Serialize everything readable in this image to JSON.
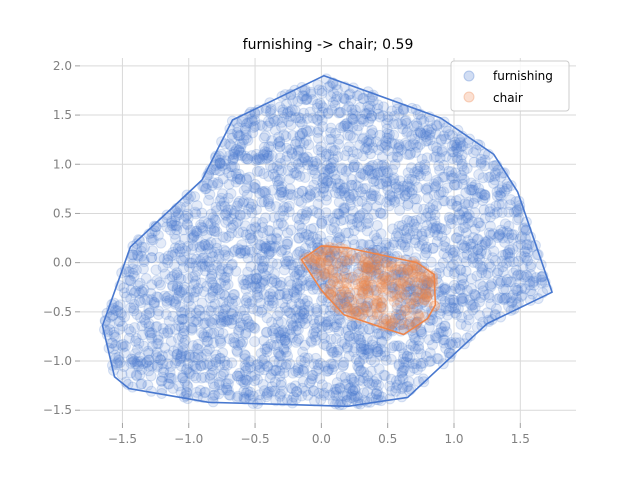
{
  "chart_data": {
    "type": "scatter",
    "title": "furnishing -> chair; 0.59",
    "xlabel": "",
    "ylabel": "",
    "xlim": [
      -1.82,
      1.92
    ],
    "ylim": [
      -1.63,
      2.08
    ],
    "grid": true,
    "legend_position": "top-right",
    "x_ticks": [
      -1.5,
      -1.0,
      -0.5,
      0.0,
      0.5,
      1.0,
      1.5
    ],
    "x_tick_labels": [
      "−1.5",
      "−1.0",
      "−0.5",
      "0.0",
      "0.5",
      "1.0",
      "1.5"
    ],
    "y_ticks": [
      -1.5,
      -1.0,
      -0.5,
      0.0,
      0.5,
      1.0,
      1.5,
      2.0
    ],
    "y_tick_labels": [
      "−1.5",
      "−1.0",
      "−0.5",
      "0.0",
      "0.5",
      "1.0",
      "1.5",
      "2.0"
    ],
    "series": [
      {
        "name": "furnishing",
        "color": "#4878CF",
        "point_count": 3000,
        "hull": [
          [
            -1.65,
            -0.64
          ],
          [
            -1.44,
            0.16
          ],
          [
            -0.9,
            0.84
          ],
          [
            -0.67,
            1.45
          ],
          [
            0.02,
            1.9
          ],
          [
            0.9,
            1.47
          ],
          [
            1.3,
            1.1
          ],
          [
            1.48,
            0.72
          ],
          [
            1.74,
            -0.3
          ],
          [
            1.25,
            -0.62
          ],
          [
            0.65,
            -1.37
          ],
          [
            0.2,
            -1.46
          ],
          [
            -0.85,
            -1.42
          ],
          [
            -1.45,
            -1.28
          ],
          [
            -1.56,
            -1.16
          ]
        ]
      },
      {
        "name": "chair",
        "color": "#EE854A",
        "point_count": 300,
        "hull": [
          [
            -0.15,
            0.03
          ],
          [
            0.0,
            0.17
          ],
          [
            0.2,
            0.15
          ],
          [
            0.72,
            0.0
          ],
          [
            0.85,
            -0.12
          ],
          [
            0.86,
            -0.43
          ],
          [
            0.8,
            -0.57
          ],
          [
            0.62,
            -0.73
          ],
          [
            0.17,
            -0.53
          ],
          [
            0.0,
            -0.28
          ]
        ]
      }
    ]
  }
}
